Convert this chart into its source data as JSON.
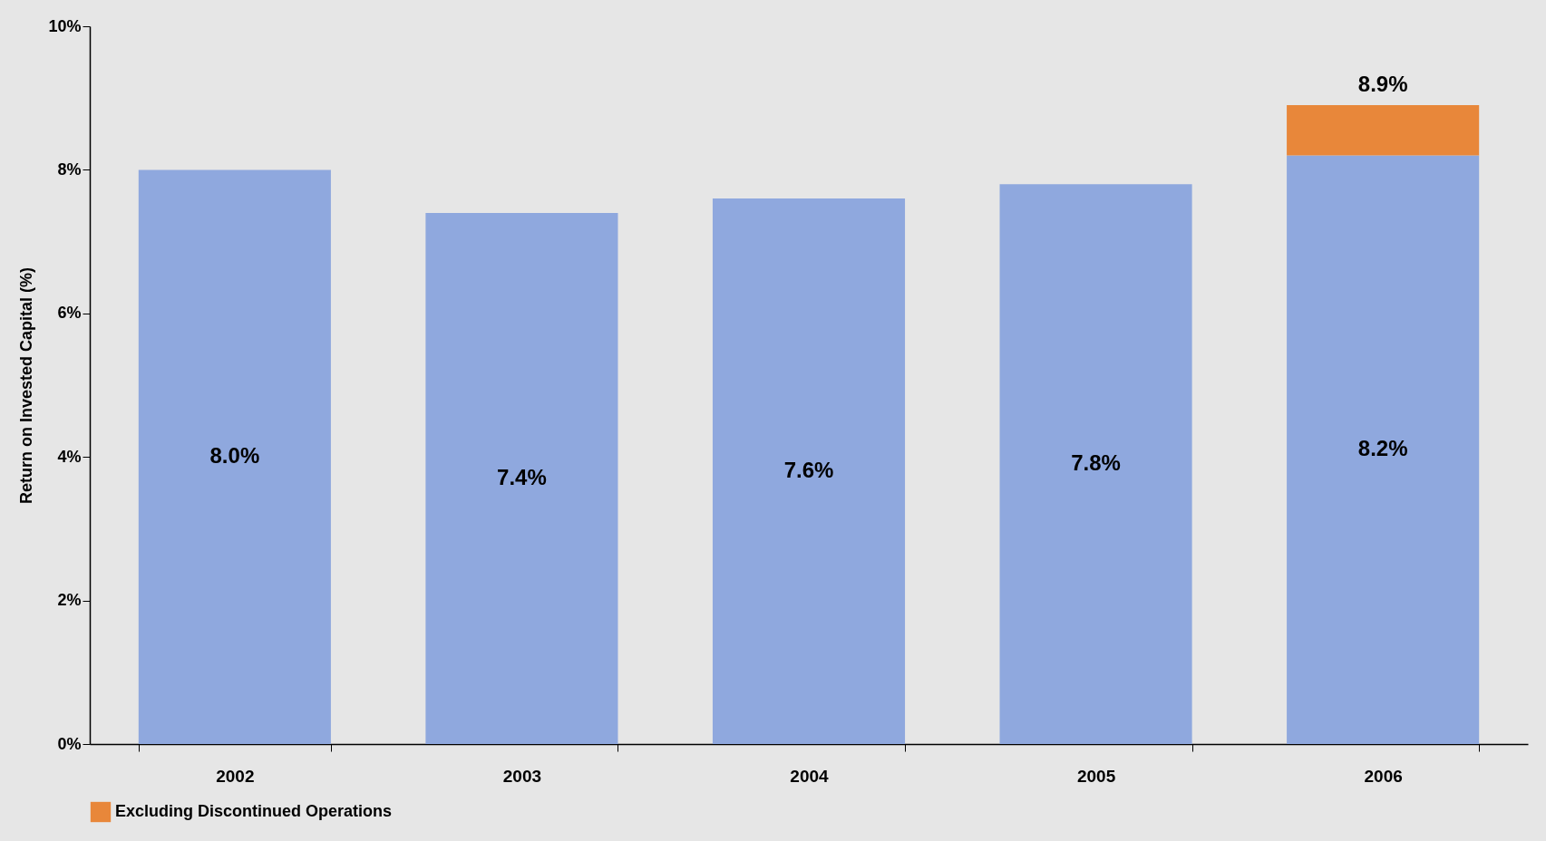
{
  "chart_data": {
    "type": "bar",
    "stacked": true,
    "ylabel": "Return on Invested Capital (%)",
    "categories": [
      "2002",
      "2003",
      "2004",
      "2005",
      "2006"
    ],
    "series": [
      {
        "color": "#8fa8de",
        "values": [
          8.0,
          7.4,
          7.6,
          7.8,
          8.2
        ],
        "value_labels": [
          "8.0%",
          "7.4%",
          "7.6%",
          "7.8%",
          "8.2%"
        ]
      },
      {
        "name": "Excluding Discontinued Operations",
        "color": "#e8873a",
        "values": [
          null,
          null,
          null,
          null,
          0.7
        ]
      }
    ],
    "totals": [
      null,
      null,
      null,
      null,
      "8.9%"
    ],
    "ylim": [
      0,
      10
    ],
    "yticks": [
      {
        "value": 0,
        "label": "0%"
      },
      {
        "value": 2,
        "label": "2%"
      },
      {
        "value": 4,
        "label": "4%"
      },
      {
        "value": 6,
        "label": "6%"
      },
      {
        "value": 8,
        "label": "8%"
      },
      {
        "value": 10,
        "label": "10%"
      }
    ],
    "grid": false,
    "legend": "bottom"
  }
}
